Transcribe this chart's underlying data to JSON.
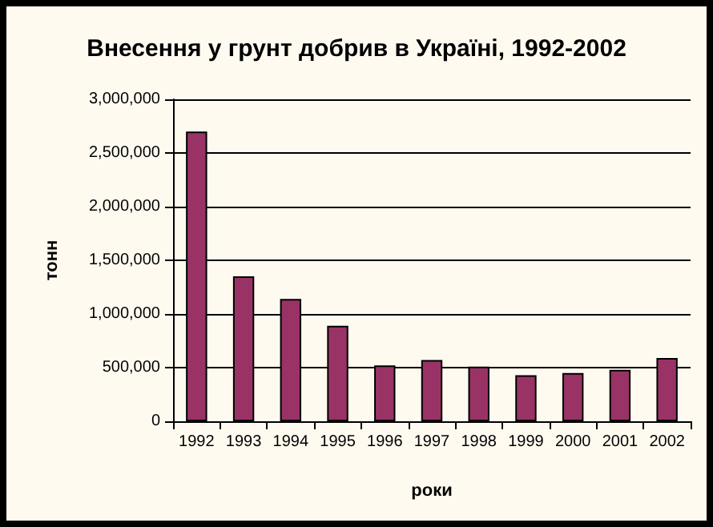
{
  "chart_data": {
    "type": "bar",
    "title": "Внесення у грунт добрив в Україні, 1992-2002",
    "xlabel": "роки",
    "ylabel": "тонн",
    "categories": [
      "1992",
      "1993",
      "1994",
      "1995",
      "1996",
      "1997",
      "1998",
      "1999",
      "2000",
      "2001",
      "2002"
    ],
    "values": [
      2700000,
      1350000,
      1140000,
      890000,
      520000,
      570000,
      510000,
      430000,
      450000,
      480000,
      590000
    ],
    "color": "#993366",
    "ylim": [
      0,
      3000000
    ],
    "yticks": [
      0,
      {
        "value": 500000,
        "label": "500,000"
      },
      {
        "value": 1000000,
        "label": "1,000,000"
      },
      {
        "value": 1500000,
        "label": "1,500,000"
      },
      {
        "value": 2000000,
        "label": "2,000,000"
      },
      {
        "value": 2500000,
        "label": "2,500,000"
      },
      {
        "value": 3000000,
        "label": "3,000,000"
      }
    ],
    "grid": "y"
  }
}
